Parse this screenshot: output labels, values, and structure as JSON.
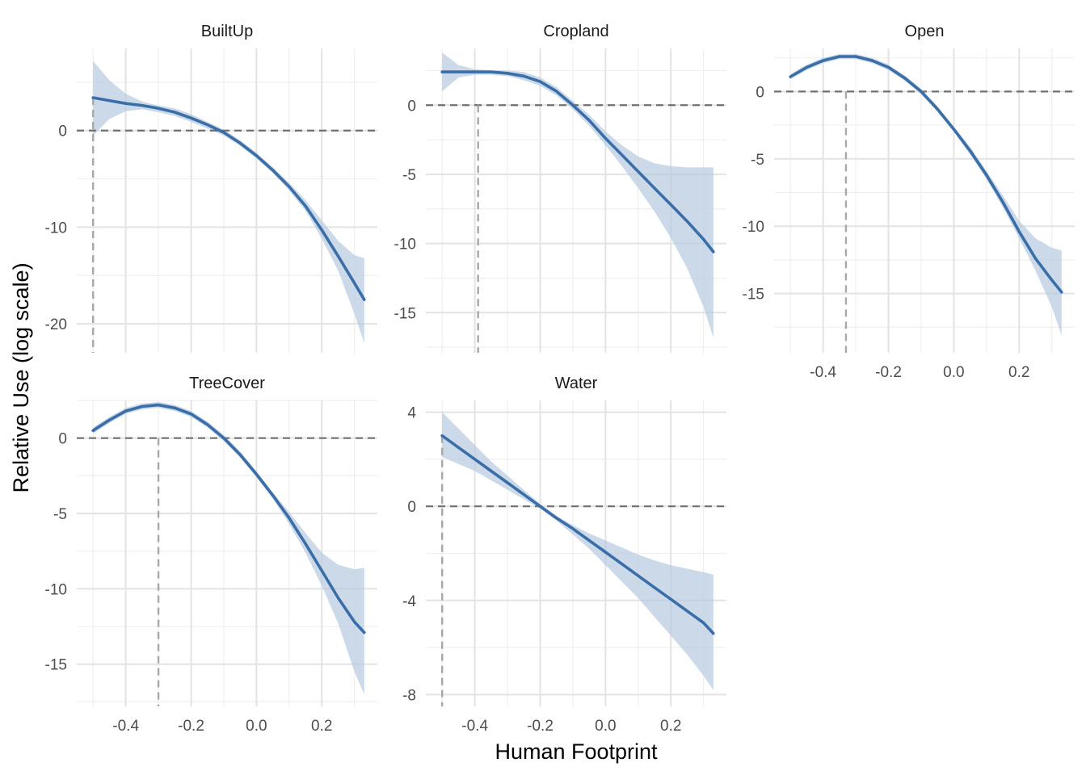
{
  "chart_data": {
    "type": "line",
    "xlabel": "Human Footprint",
    "ylabel": "Relative Use (log scale)",
    "grid": true,
    "legend": "none",
    "colors": {
      "line": "#3a6ea8",
      "ribbon": "#b7cbe1",
      "reference": "#707070"
    },
    "panels": [
      {
        "name": "BuiltUp",
        "xlim": [
          -0.55,
          0.37
        ],
        "ylim": [
          -23,
          8.5
        ],
        "xticks": [
          -0.4,
          -0.2,
          0.0,
          0.2
        ],
        "xtick_labels": [],
        "yticks": [
          0,
          -10,
          -20
        ],
        "ytick_labels": [
          "0",
          "-10",
          "-20"
        ],
        "peak_x": -0.5,
        "x": [
          -0.5,
          -0.45,
          -0.4,
          -0.35,
          -0.3,
          -0.25,
          -0.2,
          -0.15,
          -0.1,
          -0.05,
          0.0,
          0.05,
          0.1,
          0.15,
          0.2,
          0.25,
          0.3,
          0.33
        ],
        "y": [
          3.4,
          3.1,
          2.8,
          2.6,
          2.3,
          1.9,
          1.3,
          0.6,
          -0.2,
          -1.3,
          -2.6,
          -4.1,
          -5.8,
          -7.8,
          -10.3,
          -13.0,
          -15.8,
          -17.5
        ],
        "lower": [
          -0.5,
          1.2,
          2.0,
          2.2,
          1.9,
          1.5,
          0.9,
          0.2,
          -0.5,
          -1.6,
          -2.9,
          -4.4,
          -6.2,
          -8.3,
          -11.2,
          -14.5,
          -19.0,
          -22.0
        ],
        "upper": [
          7.2,
          5.2,
          3.8,
          3.0,
          2.6,
          2.3,
          1.7,
          0.9,
          0.1,
          -1.0,
          -2.3,
          -3.8,
          -5.4,
          -7.2,
          -9.3,
          -11.4,
          -12.9,
          -13.2
        ]
      },
      {
        "name": "Cropland",
        "xlim": [
          -0.55,
          0.37
        ],
        "ylim": [
          -17.9,
          4.1
        ],
        "xticks": [
          -0.4,
          -0.2,
          0.0,
          0.2
        ],
        "xtick_labels": [],
        "yticks": [
          0,
          -5,
          -10,
          -15
        ],
        "ytick_labels": [
          "0",
          "-5",
          "-10",
          "-15"
        ],
        "peak_x": -0.39,
        "x": [
          -0.5,
          -0.45,
          -0.4,
          -0.35,
          -0.3,
          -0.25,
          -0.2,
          -0.15,
          -0.1,
          -0.05,
          0.0,
          0.05,
          0.1,
          0.15,
          0.2,
          0.25,
          0.3,
          0.33
        ],
        "y": [
          2.4,
          2.4,
          2.4,
          2.4,
          2.3,
          2.1,
          1.7,
          1.0,
          0.0,
          -1.1,
          -2.4,
          -3.6,
          -4.8,
          -6.0,
          -7.2,
          -8.4,
          -9.7,
          -10.6
        ],
        "lower": [
          1.0,
          2.0,
          2.2,
          2.2,
          2.1,
          1.8,
          1.4,
          0.7,
          -0.3,
          -1.5,
          -2.9,
          -4.4,
          -6.0,
          -7.7,
          -9.6,
          -11.8,
          -14.6,
          -16.8
        ],
        "upper": [
          3.8,
          2.9,
          2.6,
          2.5,
          2.5,
          2.4,
          2.0,
          1.3,
          0.3,
          -0.7,
          -1.9,
          -2.9,
          -3.7,
          -4.2,
          -4.4,
          -4.5,
          -4.5,
          -4.5
        ]
      },
      {
        "name": "Open",
        "xlim": [
          -0.55,
          0.37
        ],
        "ylim": [
          -19.4,
          3.2
        ],
        "xticks": [
          -0.4,
          -0.2,
          0.0,
          0.2
        ],
        "xtick_labels": [
          "-0.4",
          "-0.2",
          "0.0",
          "0.2"
        ],
        "yticks": [
          0,
          -5,
          -10,
          -15
        ],
        "ytick_labels": [
          "0",
          "-5",
          "-10",
          "-15"
        ],
        "peak_x": -0.33,
        "x": [
          -0.5,
          -0.45,
          -0.4,
          -0.35,
          -0.3,
          -0.25,
          -0.2,
          -0.15,
          -0.1,
          -0.05,
          0.0,
          0.05,
          0.1,
          0.15,
          0.2,
          0.25,
          0.3,
          0.33
        ],
        "y": [
          1.1,
          1.8,
          2.3,
          2.6,
          2.6,
          2.3,
          1.8,
          1.0,
          0.0,
          -1.3,
          -2.8,
          -4.4,
          -6.2,
          -8.2,
          -10.4,
          -12.4,
          -14.0,
          -14.9
        ],
        "lower": [
          0.9,
          1.6,
          2.1,
          2.4,
          2.4,
          2.1,
          1.6,
          0.8,
          -0.2,
          -1.5,
          -3.0,
          -4.7,
          -6.5,
          -8.6,
          -10.9,
          -13.3,
          -16.0,
          -18.1
        ],
        "upper": [
          1.3,
          2.0,
          2.5,
          2.8,
          2.8,
          2.5,
          2.0,
          1.2,
          0.2,
          -1.1,
          -2.6,
          -4.1,
          -5.9,
          -7.7,
          -9.6,
          -10.9,
          -11.6,
          -11.8
        ]
      },
      {
        "name": "TreeCover",
        "xlim": [
          -0.55,
          0.37
        ],
        "ylim": [
          -17.8,
          2.5
        ],
        "xticks": [
          -0.4,
          -0.2,
          0.0,
          0.2
        ],
        "xtick_labels": [
          "-0.4",
          "-0.2",
          "0.0",
          "0.2"
        ],
        "yticks": [
          0,
          -5,
          -10,
          -15
        ],
        "ytick_labels": [
          "0",
          "-5",
          "-10",
          "-15"
        ],
        "peak_x": -0.3,
        "x": [
          -0.5,
          -0.45,
          -0.4,
          -0.35,
          -0.3,
          -0.25,
          -0.2,
          -0.15,
          -0.1,
          -0.05,
          0.0,
          0.05,
          0.1,
          0.15,
          0.2,
          0.25,
          0.3,
          0.33
        ],
        "y": [
          0.5,
          1.2,
          1.8,
          2.1,
          2.2,
          2.0,
          1.6,
          0.9,
          0.0,
          -1.1,
          -2.4,
          -3.8,
          -5.3,
          -7.0,
          -8.8,
          -10.6,
          -12.2,
          -12.9
        ],
        "lower": [
          0.3,
          1.0,
          1.6,
          1.9,
          2.0,
          1.8,
          1.4,
          0.7,
          -0.2,
          -1.3,
          -2.6,
          -4.0,
          -5.7,
          -7.6,
          -9.8,
          -12.3,
          -15.5,
          -17.0
        ],
        "upper": [
          0.7,
          1.4,
          2.0,
          2.3,
          2.4,
          2.2,
          1.8,
          1.1,
          0.2,
          -0.9,
          -2.2,
          -3.6,
          -4.9,
          -6.3,
          -7.6,
          -8.4,
          -8.7,
          -8.6
        ]
      },
      {
        "name": "Water",
        "xlim": [
          -0.55,
          0.37
        ],
        "ylim": [
          -8.5,
          4.5
        ],
        "xticks": [
          -0.4,
          -0.2,
          0.0,
          0.2
        ],
        "xtick_labels": [
          "-0.4",
          "-0.2",
          "0.0",
          "0.2"
        ],
        "yticks": [
          4,
          0,
          -4,
          -8
        ],
        "ytick_labels": [
          "4",
          "0",
          "-4",
          "-8"
        ],
        "peak_x": -0.5,
        "x": [
          -0.5,
          -0.45,
          -0.4,
          -0.35,
          -0.3,
          -0.25,
          -0.2,
          -0.15,
          -0.1,
          -0.05,
          0.0,
          0.05,
          0.1,
          0.15,
          0.2,
          0.25,
          0.3,
          0.33
        ],
        "y": [
          3.0,
          2.5,
          2.0,
          1.5,
          1.0,
          0.5,
          0.0,
          -0.5,
          -0.95,
          -1.45,
          -1.95,
          -2.45,
          -2.95,
          -3.45,
          -3.95,
          -4.45,
          -4.95,
          -5.4
        ],
        "lower": [
          2.1,
          1.8,
          1.5,
          1.1,
          0.7,
          0.3,
          -0.1,
          -0.6,
          -1.2,
          -1.8,
          -2.5,
          -3.2,
          -3.9,
          -4.7,
          -5.5,
          -6.3,
          -7.2,
          -7.8
        ],
        "upper": [
          4.0,
          3.3,
          2.6,
          1.9,
          1.3,
          0.7,
          0.1,
          -0.4,
          -0.8,
          -1.15,
          -1.45,
          -1.75,
          -2.05,
          -2.3,
          -2.5,
          -2.65,
          -2.8,
          -2.9
        ]
      }
    ]
  }
}
